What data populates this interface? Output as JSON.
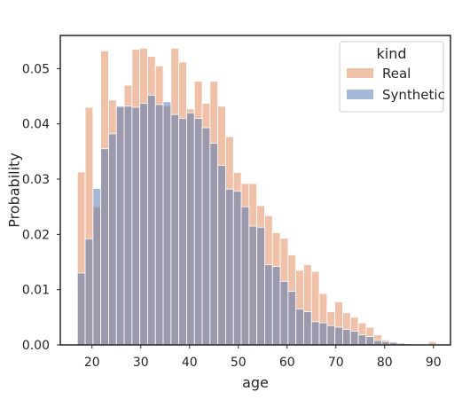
{
  "chart_data": {
    "type": "bar",
    "subtype": "overlaid-histogram",
    "title": "",
    "xlabel": "age",
    "ylabel": "Probability",
    "xlim": [
      13.5,
      93.5
    ],
    "ylim": [
      0,
      0.056
    ],
    "xticks": [
      20,
      30,
      40,
      50,
      60,
      70,
      80,
      90
    ],
    "yticks": [
      0.0,
      0.01,
      0.02,
      0.03,
      0.04,
      0.05
    ],
    "ytick_labels": [
      "0.00",
      "0.01",
      "0.02",
      "0.03",
      "0.04",
      "0.05"
    ],
    "grid": false,
    "legend": {
      "title": "kind",
      "position": "top-right"
    },
    "bin_edges": [
      17.0,
      18.6,
      20.2,
      21.8,
      23.4,
      25.0,
      26.6,
      28.2,
      29.8,
      31.4,
      33.0,
      34.6,
      36.2,
      37.8,
      39.4,
      41.0,
      42.6,
      44.2,
      45.8,
      47.4,
      49.0,
      50.6,
      52.2,
      53.8,
      55.4,
      57.0,
      58.6,
      60.2,
      61.8,
      63.4,
      65.0,
      66.6,
      68.2,
      69.8,
      71.4,
      73.0,
      74.6,
      76.2,
      77.8,
      79.4,
      81.0,
      82.6,
      84.2,
      85.8,
      87.4,
      89.0,
      90.6
    ],
    "series": [
      {
        "name": "Real",
        "color": "#dd8452",
        "values": [
          0.0313,
          0.043,
          0.025,
          0.0532,
          0.0443,
          0.043,
          0.047,
          0.0535,
          0.0537,
          0.0522,
          0.0505,
          0.0432,
          0.0537,
          0.0512,
          0.0427,
          0.0477,
          0.0437,
          0.0477,
          0.0432,
          0.0377,
          0.0312,
          0.0292,
          0.0292,
          0.0252,
          0.0234,
          0.0203,
          0.0193,
          0.0163,
          0.0135,
          0.0145,
          0.0133,
          0.0093,
          0.006,
          0.0078,
          0.0058,
          0.005,
          0.004,
          0.0032,
          0.0018,
          0.0009,
          0.0004,
          0.0003,
          0.0002,
          0.0,
          0.0,
          0.0006
        ]
      },
      {
        "name": "Synthetic",
        "color": "#4c72b0",
        "values": [
          0.013,
          0.0192,
          0.0283,
          0.0355,
          0.0382,
          0.0432,
          0.0432,
          0.043,
          0.0437,
          0.0452,
          0.0435,
          0.044,
          0.0417,
          0.041,
          0.042,
          0.041,
          0.0393,
          0.0365,
          0.0325,
          0.0282,
          0.0278,
          0.025,
          0.0215,
          0.0213,
          0.0145,
          0.0142,
          0.0115,
          0.0097,
          0.0065,
          0.006,
          0.0042,
          0.004,
          0.0035,
          0.0032,
          0.0028,
          0.0025,
          0.0018,
          0.0015,
          0.0008,
          0.0006,
          0.0005,
          0.0003,
          0.0002,
          0.0,
          0.0,
          0.0
        ]
      }
    ]
  }
}
